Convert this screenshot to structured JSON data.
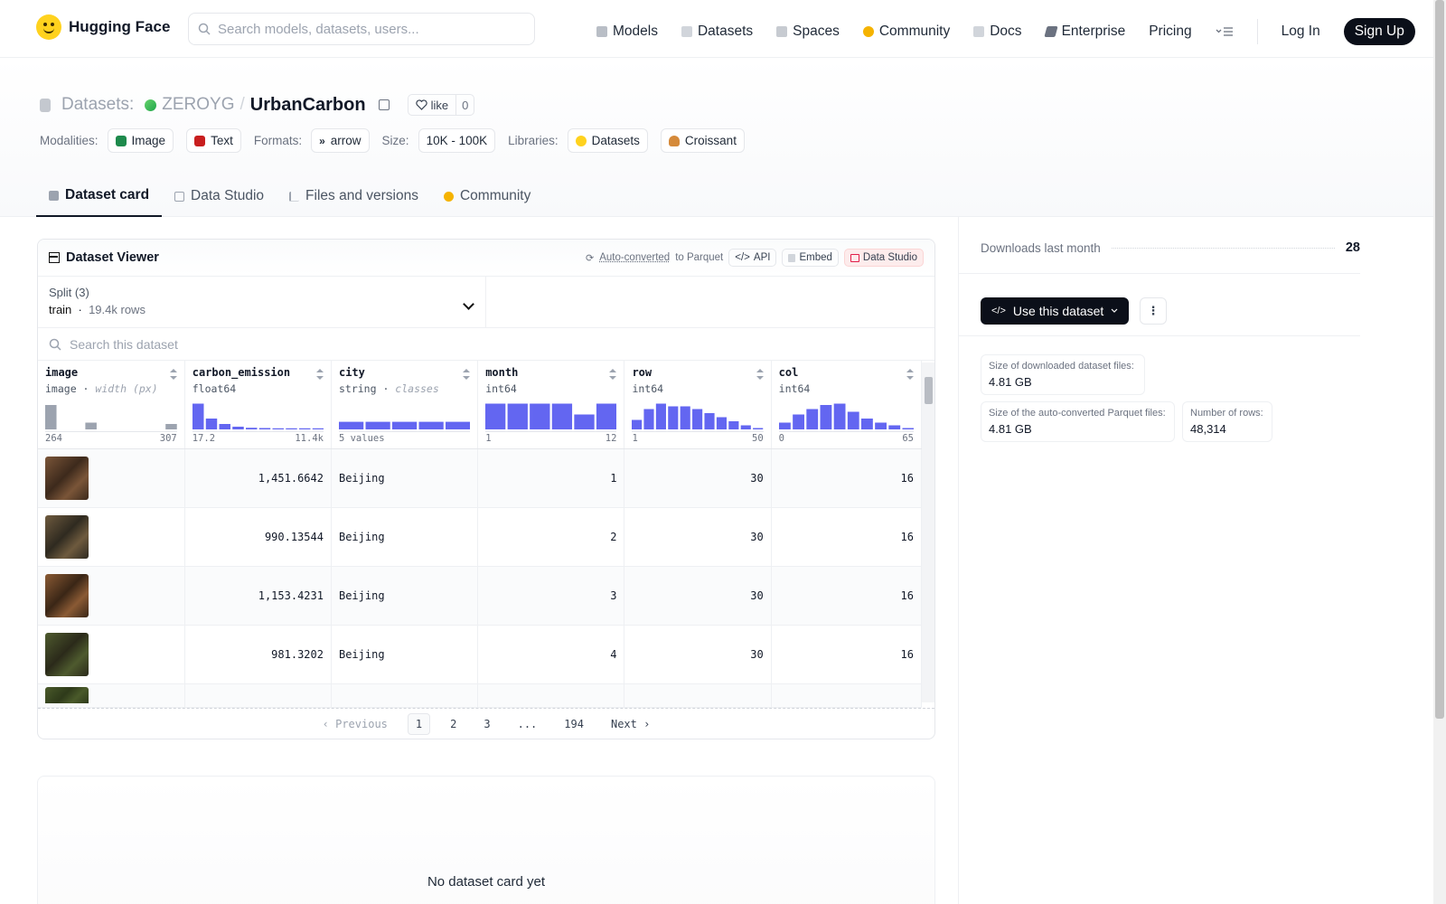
{
  "header": {
    "logo_text": "Hugging Face",
    "search_placeholder": "Search models, datasets, users...",
    "nav": [
      {
        "label": "Models",
        "icon": "models-icon",
        "color": "#9ca3af"
      },
      {
        "label": "Datasets",
        "icon": "datasets-icon",
        "color": "#d1d5db"
      },
      {
        "label": "Spaces",
        "icon": "spaces-icon",
        "color": "#c7cbd1"
      },
      {
        "label": "Community",
        "icon": "community-icon",
        "color": "#f5b301"
      },
      {
        "label": "Docs",
        "icon": "docs-icon",
        "color": "#d1d5db"
      },
      {
        "label": "Enterprise",
        "icon": "enterprise-icon",
        "color": "#6b7280"
      },
      {
        "label": "Pricing"
      }
    ],
    "login": "Log In",
    "signup": "Sign Up"
  },
  "repo": {
    "type_label": "Datasets:",
    "owner": "ZEROYG",
    "separator": "/",
    "name": "UrbanCarbon",
    "like_label": "like",
    "like_count": "0",
    "modalities_label": "Modalities:",
    "modalities": [
      "Image",
      "Text"
    ],
    "formats_label": "Formats:",
    "format": "arrow",
    "size_label": "Size:",
    "size": "10K - 100K",
    "libraries_label": "Libraries:",
    "libraries": [
      "Datasets",
      "Croissant"
    ]
  },
  "tabs": [
    "Dataset card",
    "Data Studio",
    "Files and versions",
    "Community"
  ],
  "viewer": {
    "title": "Dataset Viewer",
    "auto_converted": "Auto-converted",
    "to_parquet": " to Parquet",
    "api": "API",
    "embed": "Embed",
    "data_studio": "Data Studio",
    "split_label": "Split (3)",
    "split_name": "train",
    "split_rows": "19.4k rows",
    "search_placeholder": "Search this dataset",
    "columns": [
      {
        "name": "image",
        "type": "image",
        "extra": "width (px)",
        "min": "264",
        "max": "307",
        "bars": [
          0.9,
          0,
          0,
          0.25,
          0,
          0,
          0,
          0,
          0,
          0.2
        ],
        "color": "#9ca3af"
      },
      {
        "name": "carbon_emission",
        "type": "float64",
        "extra": "",
        "min": "17.2",
        "max": "11.4k",
        "bars": [
          0.95,
          0.4,
          0.2,
          0.1,
          0.06,
          0.05,
          0.04,
          0.04,
          0.04,
          0.04
        ],
        "color": "#6366f1"
      },
      {
        "name": "city",
        "type": "string",
        "extra": "classes",
        "min": "5 values",
        "max": "",
        "bars": [
          0.28,
          0.28,
          0.28,
          0.28,
          0.28
        ],
        "color": "#6366f1"
      },
      {
        "name": "month",
        "type": "int64",
        "extra": "",
        "min": "1",
        "max": "12",
        "bars": [
          0.95,
          0.95,
          0.95,
          0.95,
          0.55,
          0.95
        ],
        "color": "#6366f1"
      },
      {
        "name": "row",
        "type": "int64",
        "extra": "",
        "min": "1",
        "max": "50",
        "bars": [
          0.35,
          0.75,
          0.95,
          0.85,
          0.85,
          0.75,
          0.6,
          0.45,
          0.3,
          0.15,
          0.05
        ],
        "color": "#6366f1"
      },
      {
        "name": "col",
        "type": "int64",
        "extra": "",
        "min": "0",
        "max": "65",
        "bars": [
          0.25,
          0.55,
          0.75,
          0.9,
          0.95,
          0.65,
          0.4,
          0.25,
          0.15,
          0.05
        ],
        "color": "#6366f1"
      }
    ],
    "rows": [
      {
        "carbon_emission": "1,451.6642",
        "city": "Beijing",
        "month": "1",
        "row": "30",
        "col": "16",
        "thumb": [
          "#7a5538",
          "#3d2a1c"
        ]
      },
      {
        "carbon_emission": "990.13544",
        "city": "Beijing",
        "month": "2",
        "row": "30",
        "col": "16",
        "thumb": [
          "#6e5a3e",
          "#2f2a20"
        ]
      },
      {
        "carbon_emission": "1,153.4231",
        "city": "Beijing",
        "month": "3",
        "row": "30",
        "col": "16",
        "thumb": [
          "#8a5a34",
          "#3a2616"
        ]
      },
      {
        "carbon_emission": "981.3202",
        "city": "Beijing",
        "month": "4",
        "row": "30",
        "col": "16",
        "thumb": [
          "#4e5a2e",
          "#2b2a1a"
        ]
      },
      {
        "carbon_emission": "",
        "city": "",
        "month": "",
        "row": "",
        "col": "",
        "thumb": [
          "#4a5a2a",
          "#2e3a1a"
        ]
      }
    ],
    "pager": {
      "previous": "Previous",
      "pages": [
        "1",
        "2",
        "3",
        "...",
        "194"
      ],
      "next": "Next"
    }
  },
  "no_card": "No dataset card yet",
  "sidebar": {
    "downloads_label": "Downloads last month",
    "downloads_value": "28",
    "use_button": "Use this dataset",
    "stats": [
      {
        "label": "Size of downloaded dataset files:",
        "value": "4.81 GB"
      },
      {
        "label": "Size of the auto-converted Parquet files:",
        "value": "4.81 GB"
      },
      {
        "label": "Number of rows:",
        "value": "48,314"
      }
    ]
  }
}
